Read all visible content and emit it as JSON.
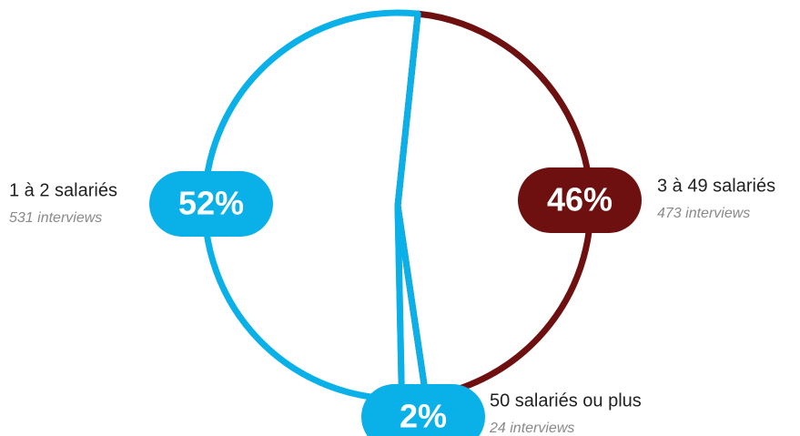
{
  "chart_data": {
    "type": "pie",
    "categories": [
      "3 à 49 salariés",
      "50 salariés ou plus",
      "1 à 2 salariés"
    ],
    "values": [
      46,
      2,
      52
    ],
    "value_labels": [
      "46%",
      "2%",
      "52%"
    ],
    "sublabels": [
      "473 interviews",
      "24 interviews",
      "531 interviews"
    ],
    "colors": [
      "#6e1010",
      "#0ab0e8",
      "#0ab0e8"
    ]
  }
}
